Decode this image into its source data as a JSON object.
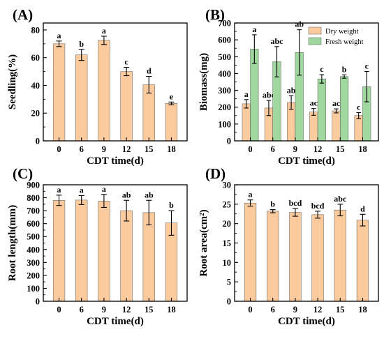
{
  "colors": {
    "dry": "#FBCB9E",
    "fresh": "#9FD79F",
    "bar_edge": "#555555",
    "axis": "#000000"
  },
  "chart_data": [
    {
      "type": "bar",
      "panel": "(A)",
      "xlabel": "CDT time(d)",
      "ylabel": "Seedling(%)",
      "categories": [
        "0",
        "6",
        "9",
        "12",
        "15",
        "18"
      ],
      "ylim": [
        0,
        85
      ],
      "yticks": [
        0,
        20,
        40,
        60,
        80
      ],
      "series": [
        {
          "values": [
            70,
            62,
            72.5,
            50,
            40.5,
            27
          ],
          "errors": [
            2,
            4,
            3,
            3,
            6,
            1
          ],
          "letters": [
            "a",
            "b",
            "a",
            "c",
            "d",
            "e"
          ],
          "color": "#FBCB9E"
        }
      ]
    },
    {
      "type": "bar",
      "panel": "(B)",
      "xlabel": "CDT time(d)",
      "ylabel": "Biomass(mg)",
      "categories": [
        "0",
        "6",
        "9",
        "12",
        "15",
        "18"
      ],
      "ylim": [
        0,
        700
      ],
      "yticks": [
        0,
        100,
        200,
        300,
        400,
        500,
        600,
        700
      ],
      "legend_position": "top-right",
      "series": [
        {
          "name": "Dry weight",
          "values": [
            220,
            195,
            228,
            172,
            178,
            150
          ],
          "errors": [
            25,
            45,
            40,
            20,
            12,
            18
          ],
          "letters": [
            "a",
            "abc",
            "ab",
            "ac",
            "ac",
            "c"
          ],
          "color": "#FBCB9E"
        },
        {
          "name": "Fresh weight",
          "values": [
            545,
            470,
            525,
            368,
            382,
            322
          ],
          "errors": [
            85,
            90,
            135,
            25,
            10,
            90
          ],
          "letters": [
            "a",
            "abc",
            "ab",
            "c",
            "b",
            "c"
          ],
          "color": "#9FD79F"
        }
      ]
    },
    {
      "type": "bar",
      "panel": "(C)",
      "xlabel": "CDT time(d)",
      "ylabel": "Root length(mm)",
      "categories": [
        "0",
        "6",
        "9",
        "12",
        "15",
        "18"
      ],
      "ylim": [
        0,
        900
      ],
      "yticks": [
        0,
        100,
        200,
        300,
        400,
        500,
        600,
        700,
        800,
        900
      ],
      "series": [
        {
          "values": [
            780,
            782,
            775,
            700,
            685,
            605
          ],
          "errors": [
            40,
            35,
            50,
            80,
            95,
            95
          ],
          "letters": [
            "a",
            "a",
            "a",
            "ab",
            "ab",
            "b"
          ],
          "color": "#FBCB9E"
        }
      ]
    },
    {
      "type": "bar",
      "panel": "(D)",
      "xlabel": "CDT time(d)",
      "ylabel": "Root area(cm²)",
      "categories": [
        "0",
        "6",
        "9",
        "12",
        "15",
        "18"
      ],
      "ylim": [
        0,
        30
      ],
      "yticks": [
        0,
        5,
        10,
        15,
        20,
        25,
        30
      ],
      "series": [
        {
          "values": [
            25.3,
            23.2,
            22.9,
            22.3,
            23.5,
            20.9
          ],
          "errors": [
            0.8,
            0.4,
            1.0,
            0.9,
            1.5,
            1.5
          ],
          "letters": [
            "a",
            "b",
            "bcd",
            "bcd",
            "abc",
            "d"
          ],
          "color": "#FBCB9E"
        }
      ]
    }
  ]
}
